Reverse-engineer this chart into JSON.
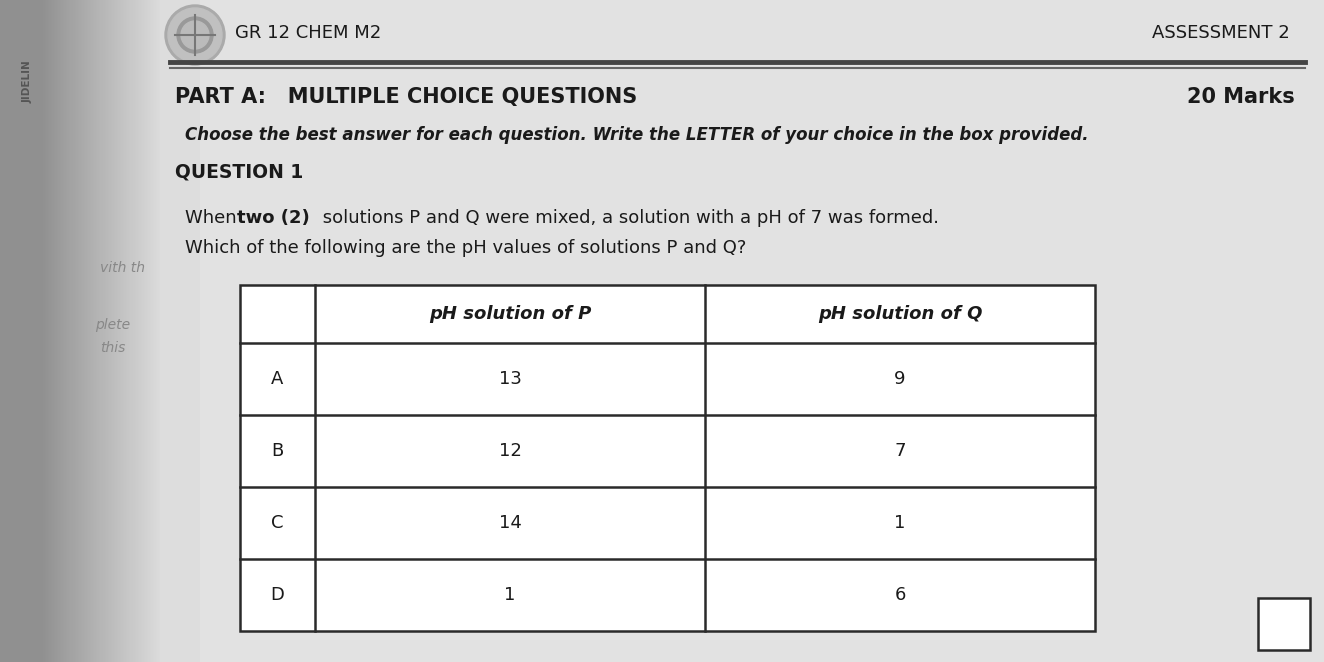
{
  "header_left_text": "GR 12 CHEM M2",
  "header_right_text": "ASSESSMENT 2",
  "side_text_top": "JIDELIN",
  "part_a_title": "PART A:   MULTIPLE CHOICE QUESTIONS",
  "part_a_marks": "20 Marks",
  "instruction": "Choose the best answer for each question. Write the LETTER of your choice in the box provided.",
  "question_label": "QUESTION 1",
  "question_text_line2": "Which of the following are the pH values of solutions P and Q?",
  "table_col2_header": "pH solution of P",
  "table_col3_header": "pH solution of Q",
  "table_rows": [
    {
      "label": "A",
      "p": "13",
      "q": "9"
    },
    {
      "label": "B",
      "p": "12",
      "q": "7"
    },
    {
      "label": "C",
      "p": "14",
      "q": "1"
    },
    {
      "label": "D",
      "p": "1",
      "q": "6"
    }
  ],
  "bg_main": "#c8c8c8",
  "bg_page": "#dcdcdc",
  "bg_white_area": "#e8e8e8",
  "left_spine_dark": "#999999",
  "left_spine_mid": "#b0b0b0",
  "header_line_color": "#555555",
  "table_border_color": "#2a2a2a",
  "text_color": "#1a1a1a",
  "logo_outer": "#888888",
  "logo_inner": "#666666",
  "side_label_color": "#444444"
}
